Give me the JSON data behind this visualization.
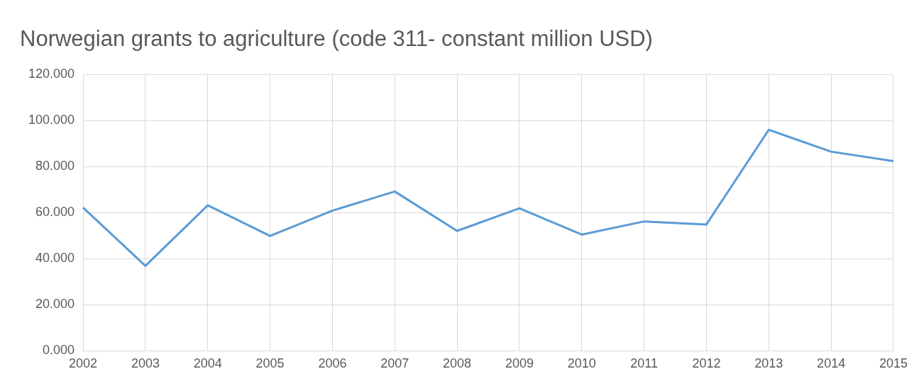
{
  "chart_data": {
    "type": "line",
    "title": "Norwegian grants to agriculture (code 311- constant million USD)",
    "categories": [
      "2002",
      "2003",
      "2004",
      "2005",
      "2006",
      "2007",
      "2008",
      "2009",
      "2010",
      "2011",
      "2012",
      "2013",
      "2014",
      "2015"
    ],
    "series": [
      {
        "color": "#5b9bd5",
        "values": [
          62.2,
          36.9,
          63.2,
          49.9,
          60.9,
          69.2,
          52.1,
          61.9,
          50.5,
          56.2,
          54.9,
          96.0,
          86.5,
          82.4
        ]
      }
    ],
    "ylim": [
      0,
      120
    ],
    "yticks": [
      {
        "value": 0,
        "label": "0.000"
      },
      {
        "value": 20,
        "label": "20.000"
      },
      {
        "value": 40,
        "label": "40.000"
      },
      {
        "value": 60,
        "label": "60.000"
      },
      {
        "value": 80,
        "label": "80.000"
      },
      {
        "value": 100,
        "label": "100.000"
      },
      {
        "value": 120,
        "label": "120.000"
      }
    ],
    "grid": true,
    "legend": false,
    "marker": "none",
    "line_style": "solid"
  }
}
